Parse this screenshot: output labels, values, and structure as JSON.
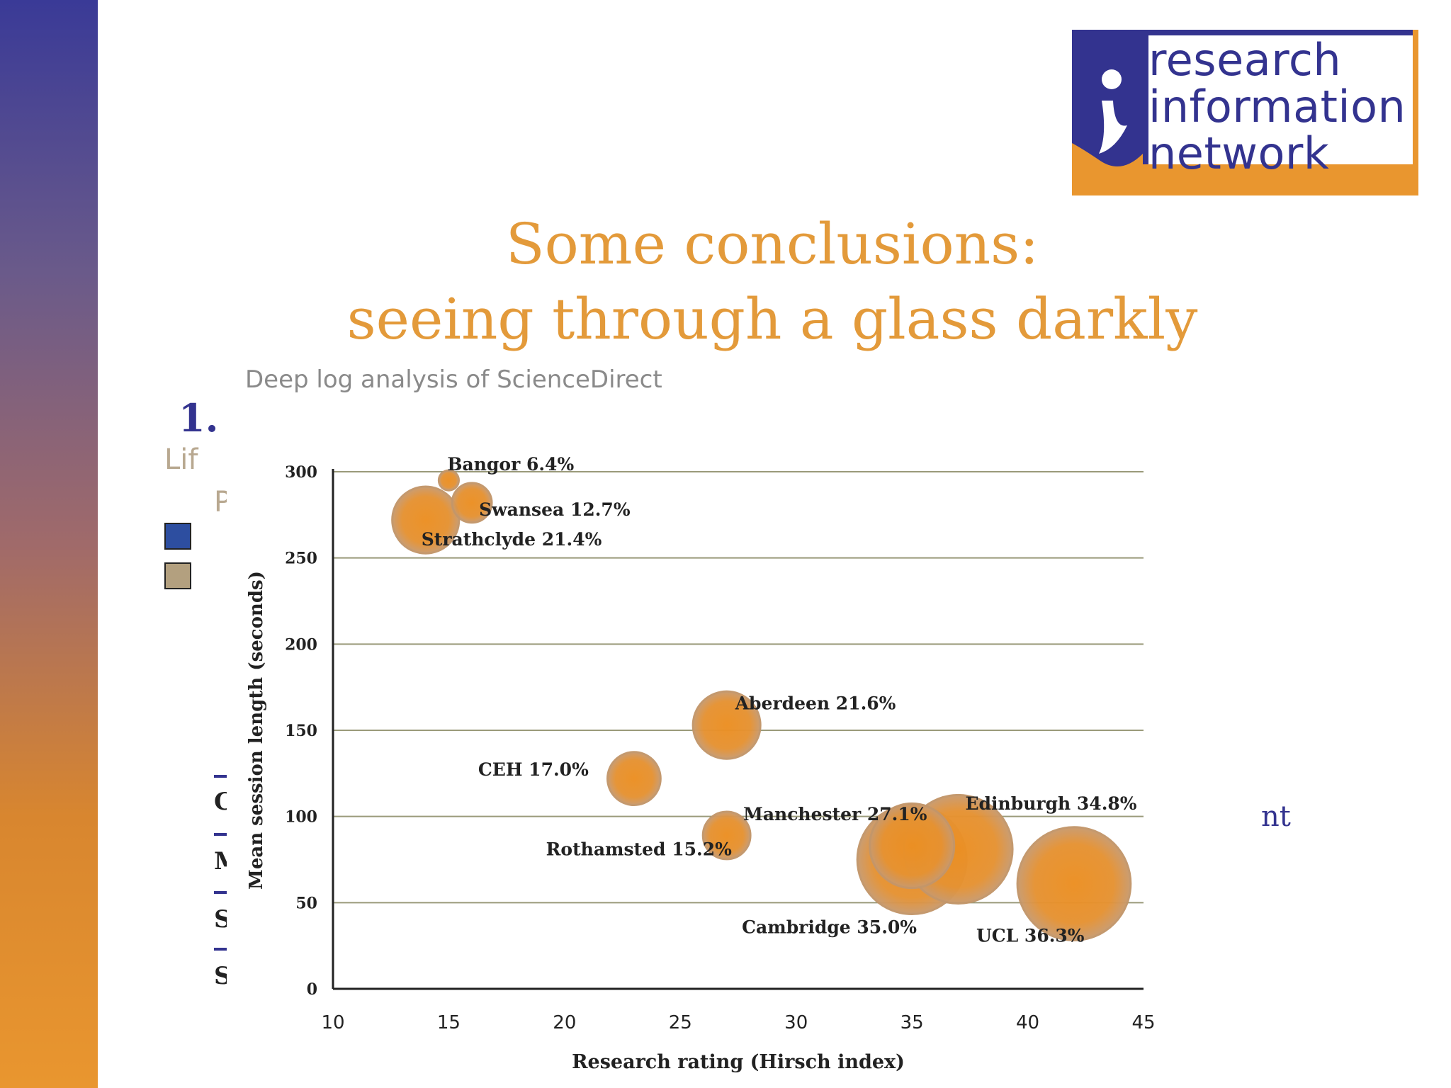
{
  "slide": {
    "title_line1": "Some conclusions:",
    "title_line2": "seeing through a glass darkly"
  },
  "logo": {
    "words": [
      "research",
      "information",
      "network"
    ]
  },
  "fragments": {
    "number": "1.",
    "left_text_1": "Lif",
    "left_text_2": "P(",
    "list_items": [
      "Ca",
      "M",
      "St",
      "Sv"
    ],
    "right_text": "nt"
  },
  "colors": {
    "accent_orange": "#e39a3a",
    "brand_blue": "#33338f",
    "bubble_fill": "#e9922c",
    "bubble_ring": "#c3966a",
    "legend_blue": "#2d4ea0",
    "legend_tan": "#b3a07f"
  },
  "chart_data": {
    "type": "scatter",
    "title": "Deep log analysis of ScienceDirect",
    "xlabel": "Research rating (Hirsch index)",
    "ylabel": "Mean session length (seconds)",
    "xlim": [
      10,
      45
    ],
    "ylim": [
      0,
      300
    ],
    "x_ticks": [
      10,
      15,
      20,
      25,
      30,
      35,
      40,
      45
    ],
    "y_ticks": [
      0,
      50,
      100,
      150,
      200,
      250,
      300
    ],
    "grid": "horizontal",
    "bubble_size_meaning": "percentage",
    "points": [
      {
        "label": "Bangor 6.4%",
        "x": 15,
        "y": 295,
        "size": 6.4
      },
      {
        "label": "Swansea 12.7%",
        "x": 16,
        "y": 282,
        "size": 12.7
      },
      {
        "label": "Strathclyde 21.4%",
        "x": 14,
        "y": 272,
        "size": 21.4
      },
      {
        "label": "Aberdeen 21.6%",
        "x": 27,
        "y": 153,
        "size": 21.6
      },
      {
        "label": "CEH 17.0%",
        "x": 23,
        "y": 122,
        "size": 17.0
      },
      {
        "label": "Rothamsted 15.2%",
        "x": 27,
        "y": 89,
        "size": 15.2
      },
      {
        "label": "Manchester 27.1%",
        "x": 35,
        "y": 83,
        "size": 27.1
      },
      {
        "label": "Edinburgh 34.8%",
        "x": 37,
        "y": 81,
        "size": 34.8
      },
      {
        "label": "Cambridge 35.0%",
        "x": 35,
        "y": 75,
        "size": 35.0
      },
      {
        "label": "UCL 36.3%",
        "x": 42,
        "y": 61,
        "size": 36.3
      }
    ]
  }
}
